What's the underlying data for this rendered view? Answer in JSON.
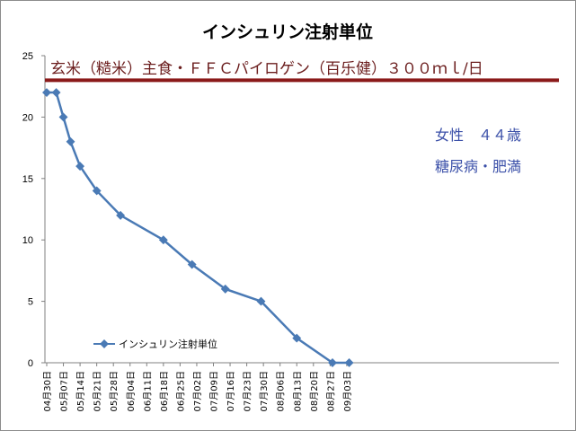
{
  "chart_data": {
    "type": "line",
    "title": "インシュリン注射単位",
    "xlabel": "",
    "ylabel": "",
    "ylim": [
      0,
      25
    ],
    "y_ticks": [
      "0",
      "5",
      "10",
      "15",
      "20",
      "25"
    ],
    "x_ticks": [
      "04月30日",
      "05月07日",
      "05月14日",
      "05月21日",
      "05月28日",
      "06月04日",
      "06月11日",
      "06月18日",
      "06月25日",
      "07月02日",
      "07月09日",
      "07月16日",
      "07月23日",
      "07月30日",
      "08月06日",
      "08月13日",
      "08月20日",
      "08月27日",
      "09月03日"
    ],
    "series": [
      {
        "name": "インシュリン注射単位",
        "color": "#4a7ab5",
        "points": [
          {
            "x": "04月30日",
            "y": 22
          },
          {
            "x": "05月04日",
            "y": 22
          },
          {
            "x": "05月07日",
            "y": 20
          },
          {
            "x": "05月10日",
            "y": 18
          },
          {
            "x": "05月14日",
            "y": 16
          },
          {
            "x": "05月21日",
            "y": 14
          },
          {
            "x": "05月31日",
            "y": 12
          },
          {
            "x": "06月18日",
            "y": 10
          },
          {
            "x": "06月30日",
            "y": 8
          },
          {
            "x": "07月14日",
            "y": 6
          },
          {
            "x": "07月29日",
            "y": 5
          },
          {
            "x": "08月13日",
            "y": 2
          },
          {
            "x": "08月28日",
            "y": 0
          },
          {
            "x": "09月04日",
            "y": 0
          }
        ]
      }
    ],
    "reference_line": {
      "y": 23,
      "color": "#8b1a1a"
    },
    "grid": false,
    "legend_position": "bottom-left"
  },
  "annotations": {
    "diet_line": "玄米（糙米）主食・ＦＦＣパイロゲン（百乐健）３００ｍｌ/日",
    "patient_line1": "女性　４４歳",
    "patient_line2": "糖尿病・肥満"
  }
}
